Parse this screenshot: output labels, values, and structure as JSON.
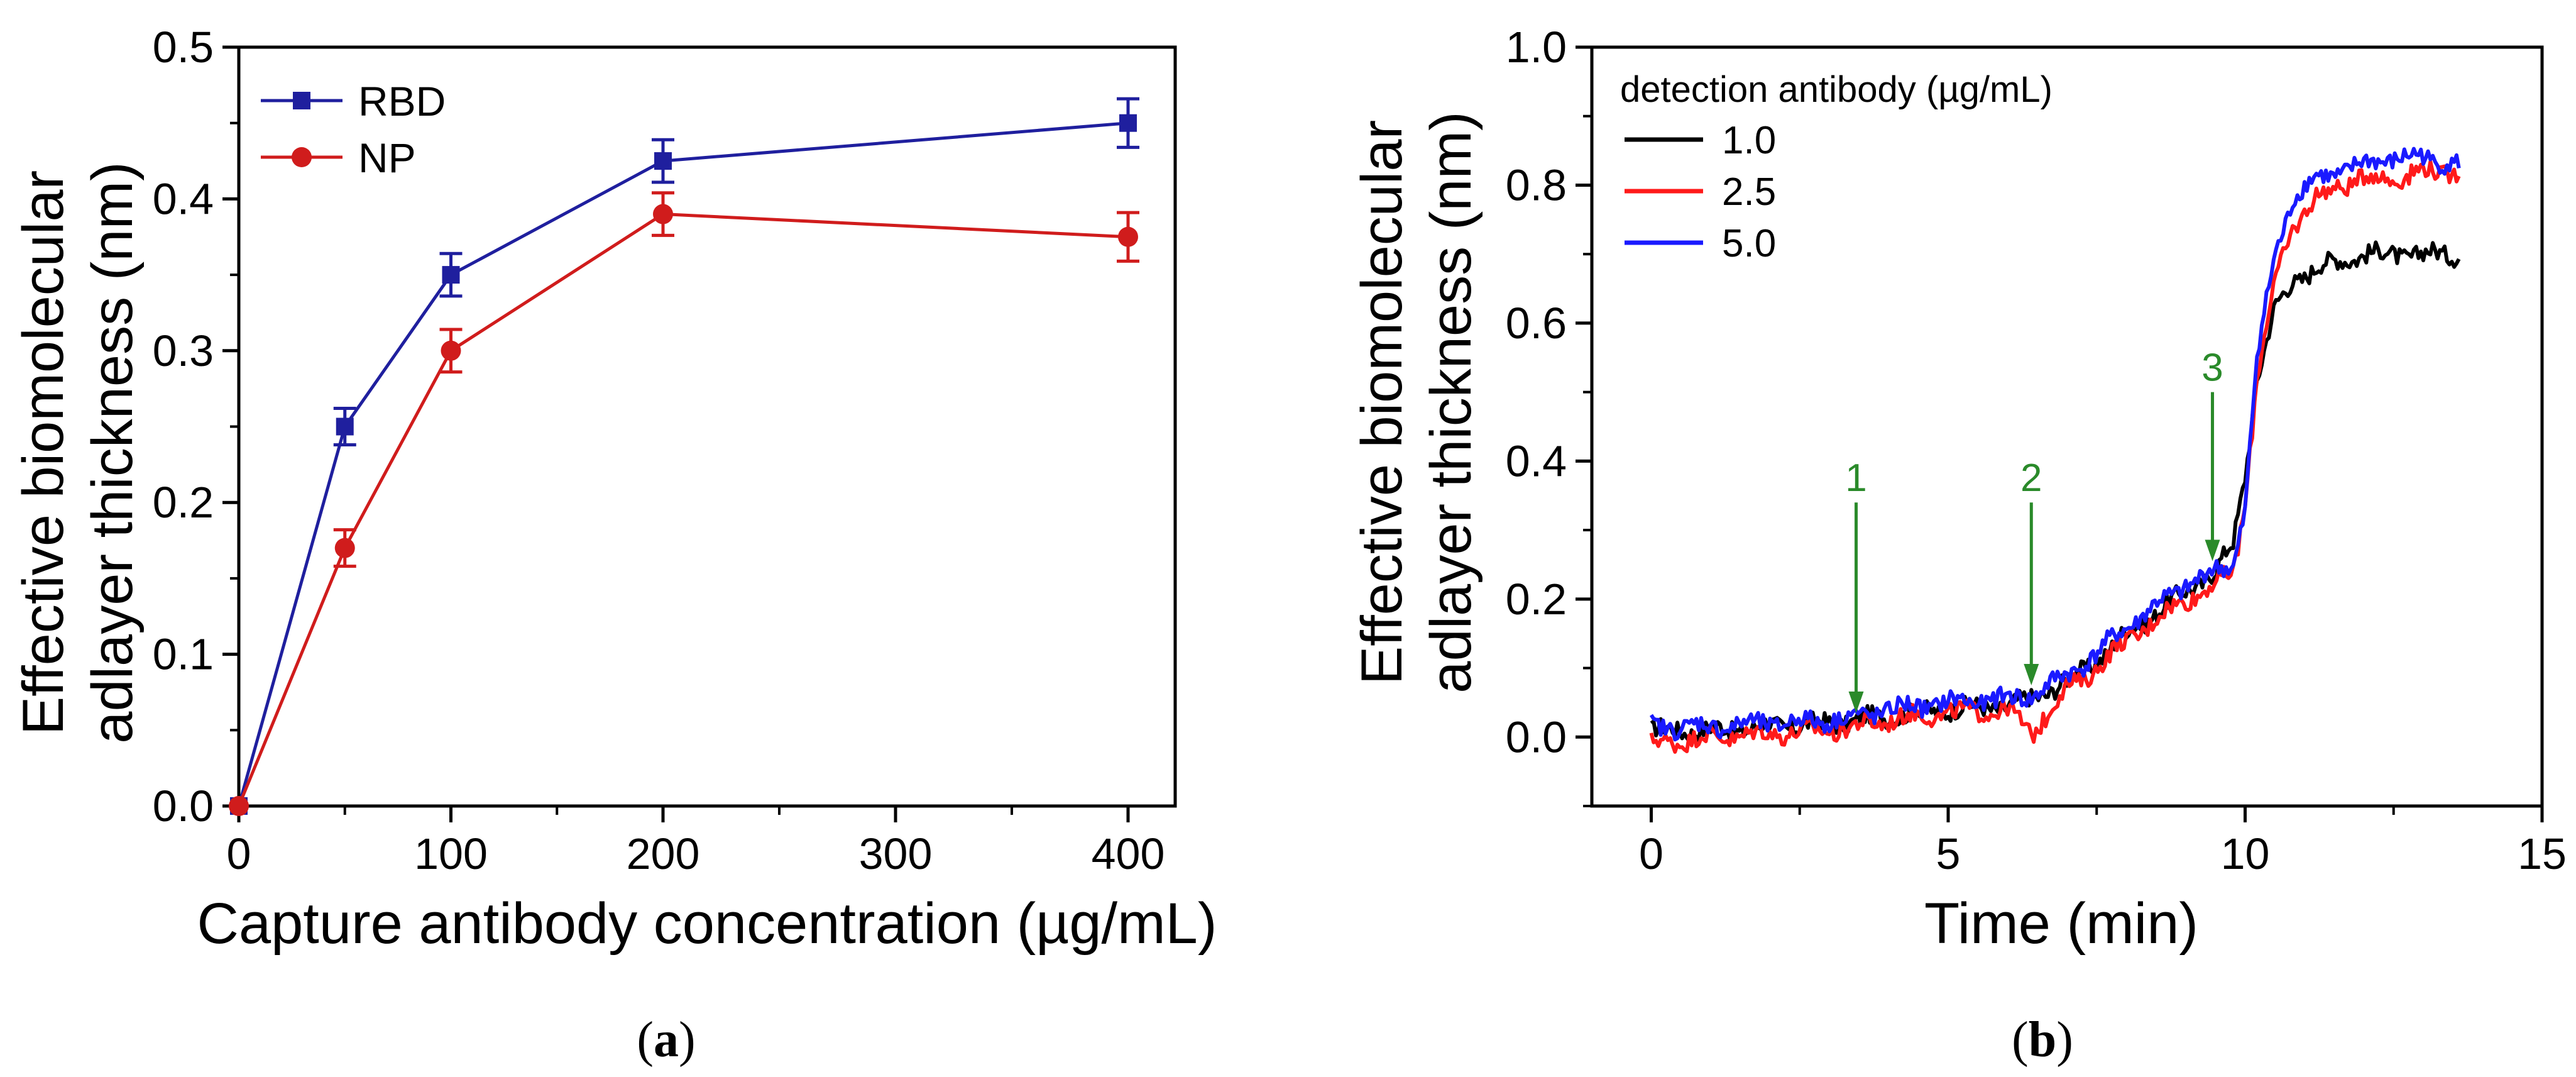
{
  "figure": {
    "panel_a_caption": "(a)",
    "panel_b_caption": "(b)",
    "panel_a_caption_letter": "a",
    "panel_b_caption_letter": "b"
  },
  "chart_data": [
    {
      "type": "line",
      "panel": "a",
      "title": "",
      "xlabel": "Capture antibody concentration (µg/mL)",
      "ylabel_line1": "Effective biomolecular",
      "ylabel_line2": "adlayer thickness (nm)",
      "x_scale": "piecewise-linear (0–200 spans 2 major ticks per 100, 200–400 compressed)",
      "x_ticks": [
        0,
        100,
        200,
        300,
        400
      ],
      "x_tick_labels": [
        "0",
        "100",
        "200",
        "300",
        "400"
      ],
      "y_ticks": [
        0.0,
        0.1,
        0.2,
        0.3,
        0.4,
        0.5
      ],
      "y_tick_labels": [
        "0.0",
        "0.1",
        "0.2",
        "0.3",
        "0.4",
        "0.5"
      ],
      "xlim": [
        -5,
        420
      ],
      "ylim": [
        0.0,
        0.5
      ],
      "grid": false,
      "legend_position": "top-left",
      "x": [
        0,
        50,
        100,
        200,
        400
      ],
      "series": [
        {
          "name": "RBD",
          "color": "#1f1f9e",
          "marker": "square",
          "values": [
            0.0,
            0.25,
            0.35,
            0.425,
            0.45
          ],
          "errors": [
            0.0,
            0.012,
            0.014,
            0.014,
            0.016
          ]
        },
        {
          "name": "NP",
          "color": "#d01c1c",
          "marker": "circle",
          "values": [
            0.0,
            0.17,
            0.3,
            0.39,
            0.375
          ],
          "errors": [
            0.0,
            0.012,
            0.014,
            0.014,
            0.016
          ]
        }
      ]
    },
    {
      "type": "line",
      "panel": "b",
      "title": "",
      "xlabel": "Time (min)",
      "ylabel_line1": "Effective biomolecular",
      "ylabel_line2": "adlayer thickness (nm)",
      "x_ticks": [
        0,
        5,
        10,
        15
      ],
      "x_tick_labels": [
        "0",
        "5",
        "10",
        "15"
      ],
      "y_ticks": [
        0.0,
        0.2,
        0.4,
        0.6,
        0.8,
        1.0
      ],
      "y_tick_labels": [
        "0.0",
        "0.2",
        "0.4",
        "0.6",
        "0.8",
        "1.0"
      ],
      "xlim": [
        -1,
        15
      ],
      "ylim": [
        -0.1,
        1.0
      ],
      "grid": false,
      "legend_title": "detection antibody (µg/mL)",
      "legend_position": "top-left",
      "series": [
        {
          "name": "1.0",
          "color": "#000000",
          "x": [
            0,
            1,
            2,
            3,
            3.5,
            4,
            5,
            6,
            6.4,
            7,
            7.5,
            8,
            8.5,
            9,
            9.5,
            9.8,
            10.0,
            10.2,
            10.5,
            10.8,
            11.2,
            11.6,
            12,
            12.5,
            13,
            13.6
          ],
          "y": [
            0.01,
            0.01,
            0.015,
            0.02,
            0.025,
            0.03,
            0.04,
            0.045,
            0.055,
            0.08,
            0.11,
            0.15,
            0.18,
            0.21,
            0.24,
            0.28,
            0.38,
            0.52,
            0.62,
            0.66,
            0.68,
            0.69,
            0.7,
            0.7,
            0.7,
            0.7
          ]
        },
        {
          "name": "2.5",
          "color": "#ff1a1a",
          "x": [
            0,
            1,
            2,
            3,
            3.5,
            4,
            5,
            6,
            6.4,
            7,
            7.5,
            8,
            8.5,
            9,
            9.5,
            9.8,
            10.0,
            10.2,
            10.5,
            10.8,
            11.2,
            11.6,
            12,
            12.5,
            13,
            13.6
          ],
          "y": [
            -0.01,
            0.0,
            0.005,
            0.01,
            0.015,
            0.025,
            0.035,
            0.04,
            0.005,
            0.07,
            0.1,
            0.14,
            0.17,
            0.2,
            0.22,
            0.24,
            0.34,
            0.52,
            0.66,
            0.74,
            0.78,
            0.8,
            0.81,
            0.81,
            0.82,
            0.82
          ]
        },
        {
          "name": "5.0",
          "color": "#1a1aff",
          "x": [
            0,
            1,
            2,
            3,
            3.5,
            4,
            5,
            6,
            6.4,
            7,
            7.5,
            8,
            8.5,
            9,
            9.5,
            9.8,
            10.0,
            10.2,
            10.5,
            10.8,
            11.2,
            11.6,
            12,
            12.5,
            13,
            13.6
          ],
          "y": [
            0.015,
            0.015,
            0.02,
            0.025,
            0.03,
            0.04,
            0.05,
            0.055,
            0.06,
            0.09,
            0.12,
            0.16,
            0.19,
            0.22,
            0.24,
            0.25,
            0.33,
            0.55,
            0.7,
            0.78,
            0.81,
            0.82,
            0.83,
            0.84,
            0.84,
            0.83
          ]
        }
      ],
      "annotations": [
        {
          "label": "1",
          "x": 3.45,
          "arrow_from_y": 0.34,
          "arrow_to_y": 0.035,
          "color": "#2a8a2a"
        },
        {
          "label": "2",
          "x": 6.4,
          "arrow_from_y": 0.34,
          "arrow_to_y": 0.075,
          "color": "#2a8a2a"
        },
        {
          "label": "3",
          "x": 9.45,
          "arrow_from_y": 0.5,
          "arrow_to_y": 0.255,
          "color": "#2a8a2a"
        }
      ]
    }
  ]
}
